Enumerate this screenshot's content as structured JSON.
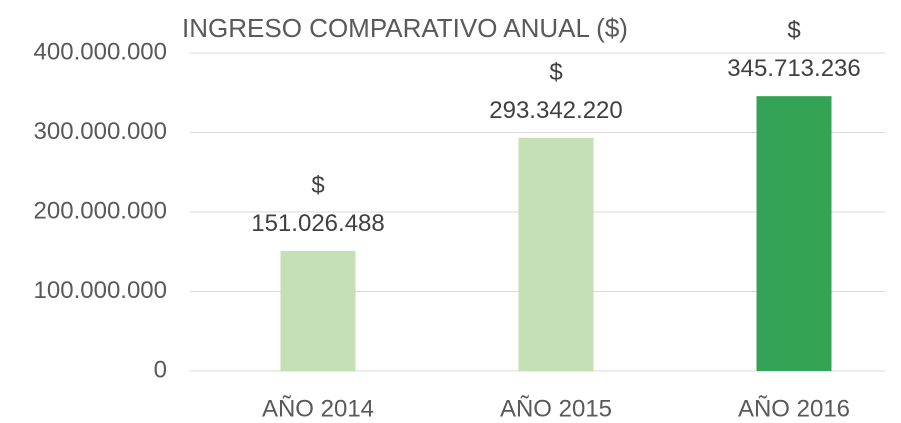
{
  "chart_data": {
    "type": "bar",
    "title": "INGRESO COMPARATIVO ANUAL ($)",
    "categories": [
      "AÑO 2014",
      "AÑO 2015",
      "AÑO 2016"
    ],
    "values": [
      151026488,
      293342220,
      345713236
    ],
    "value_labels": [
      "$ 151.026.488",
      "$ 293.342.220",
      "$ 345.713.236"
    ],
    "colors": [
      "#c5e0b4",
      "#c5e0b4",
      "#34a356"
    ],
    "ylim": [
      0,
      400000000
    ],
    "yticks": [
      0,
      {
        "value": 100000000,
        "label": "100.000.000"
      },
      {
        "value": 200000000,
        "label": "200.000.000"
      },
      {
        "value": 300000000,
        "label": "300.000.000"
      },
      {
        "value": 400000000,
        "label": "400.000.000"
      }
    ],
    "grid": true
  }
}
